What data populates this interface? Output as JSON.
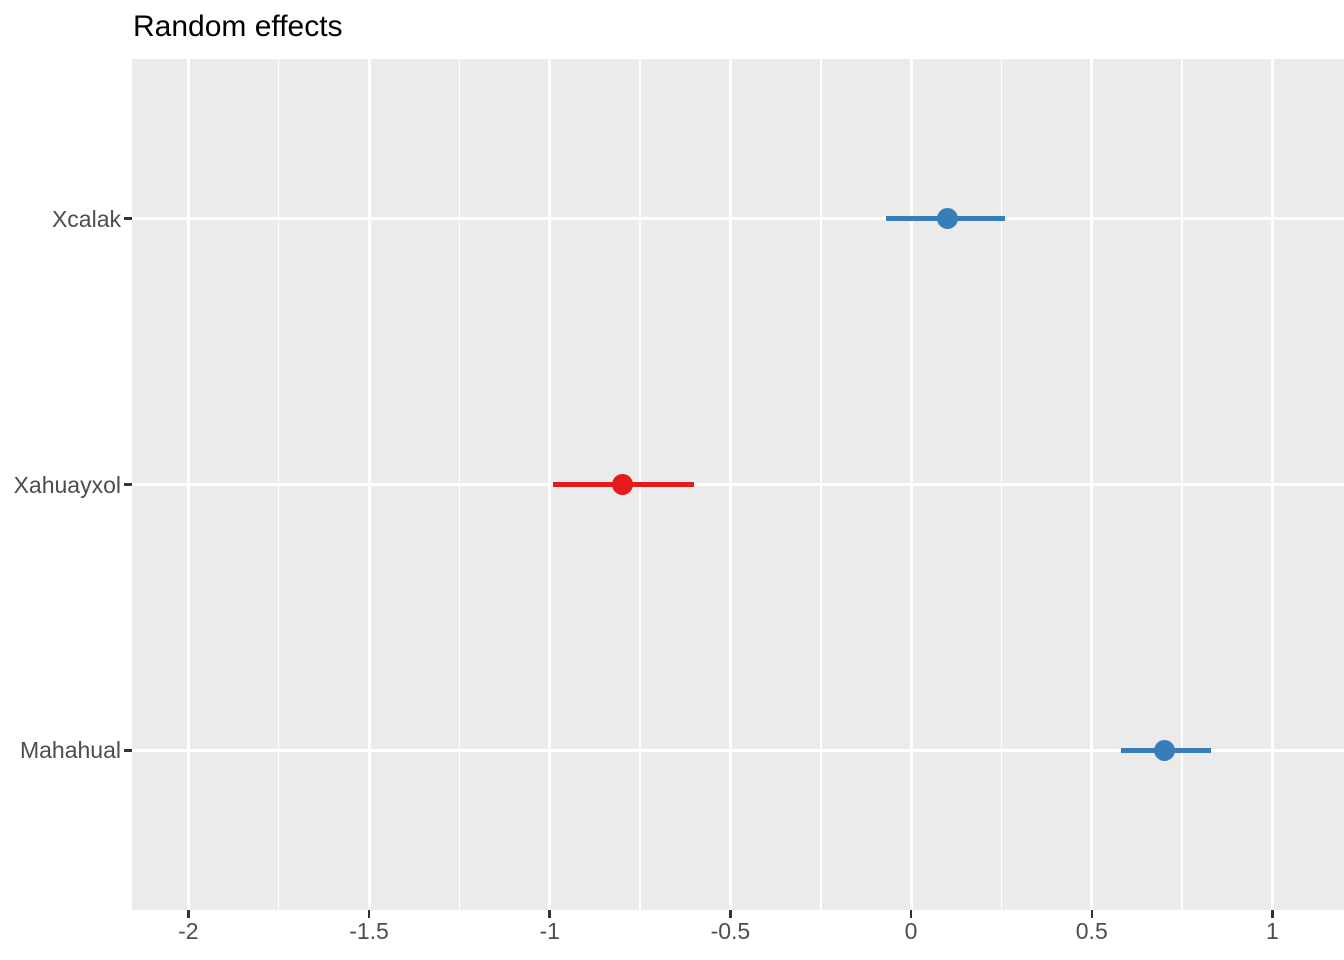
{
  "chart_data": {
    "type": "scatter",
    "subtype": "point-range-forest",
    "title": "Random effects",
    "orientation": "horizontal",
    "xlabel": "",
    "ylabel": "",
    "legend": "none",
    "categories": [
      "Xcalak",
      "Xahuayxol",
      "Mahahual"
    ],
    "series": [
      {
        "label": "Xcalak",
        "estimate": 0.1,
        "ci_low": -0.07,
        "ci_high": 0.26,
        "color": "#377EB8"
      },
      {
        "label": "Xahuayxol",
        "estimate": -0.8,
        "ci_low": -0.99,
        "ci_high": -0.6,
        "color": "#E41A1C"
      },
      {
        "label": "Mahahual",
        "estimate": 0.7,
        "ci_low": 0.58,
        "ci_high": 0.83,
        "color": "#377EB8"
      }
    ],
    "x_ticks": [
      -2,
      -1.5,
      -1,
      -0.5,
      0,
      0.5,
      1
    ],
    "xlim": [
      -2.156,
      1.198
    ],
    "grid": "white major+minor vertical gridlines, white major horizontal gridlines on gray panel",
    "colors": {
      "positive_estimate": "#377EB8",
      "negative_estimate": "#E41A1C",
      "panel_background": "#EBEBEB",
      "gridline": "#FFFFFF",
      "axis_text": "#4D4D4D",
      "tick_mark": "#333333",
      "title": "#000000"
    }
  }
}
